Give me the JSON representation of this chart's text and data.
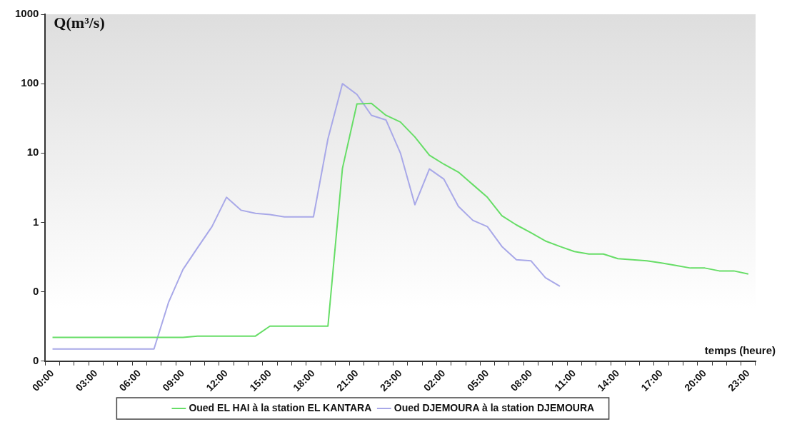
{
  "chart_data": {
    "type": "line",
    "ylabel": "Q(m³/s)",
    "xlabel": "temps (heure)",
    "categories": [
      "00:00",
      null,
      null,
      "03:00",
      null,
      null,
      "06:00",
      null,
      null,
      "09:00",
      null,
      null,
      "12:00",
      null,
      null,
      "15:00",
      null,
      null,
      "18:00",
      null,
      null,
      "21:00",
      null,
      null,
      "23:00",
      null,
      null,
      "02:00",
      null,
      null,
      "05:00",
      null,
      null,
      "08:00",
      null,
      null,
      "11:00",
      null,
      null,
      "14:00",
      null,
      null,
      "17:00",
      null,
      null,
      "20:00",
      null,
      null,
      "23:00"
    ],
    "series": [
      {
        "name": "Oued EL HAI à la station EL KANTARA",
        "color": "#66dd66",
        "values": [
          0.022,
          0.022,
          0.022,
          0.022,
          0.022,
          0.022,
          0.022,
          0.022,
          0.022,
          0.022,
          0.023,
          0.023,
          0.023,
          0.023,
          0.023,
          0.032,
          0.032,
          0.032,
          0.032,
          0.032,
          6,
          51,
          52,
          35,
          28,
          17,
          9.3,
          6.9,
          5.3,
          3.5,
          2.3,
          1.25,
          0.92,
          0.71,
          0.54,
          0.45,
          0.38,
          0.35,
          0.35,
          0.3,
          0.29,
          0.28,
          0.26,
          0.24,
          0.22,
          0.22,
          0.2,
          0.2,
          0.18
        ]
      },
      {
        "name": "Oued DJEMOURA à la station DJEMOURA",
        "color": "#a8a8e8",
        "values": [
          0.015,
          0.015,
          0.015,
          0.015,
          0.015,
          0.015,
          0.015,
          0.015,
          0.07,
          0.21,
          0.43,
          0.87,
          2.3,
          1.5,
          1.35,
          1.3,
          1.2,
          1.2,
          1.2,
          16,
          100,
          70,
          35,
          30,
          10,
          1.8,
          5.9,
          4.2,
          1.7,
          1.07,
          0.87,
          0.45,
          0.29,
          0.28,
          0.16,
          0.12,
          null,
          null,
          null,
          null,
          null,
          null,
          null,
          null,
          null,
          null,
          null,
          null,
          null
        ]
      }
    ],
    "log": "y",
    "ylim": [
      0.01,
      1000
    ],
    "yticks": [
      {
        "value": 0.01,
        "label": "0"
      },
      {
        "value": 0.1,
        "label": "0"
      },
      1,
      10,
      100,
      1000
    ],
    "grid": false,
    "legend": "bottom",
    "marker": "none",
    "line_style": "solid"
  }
}
